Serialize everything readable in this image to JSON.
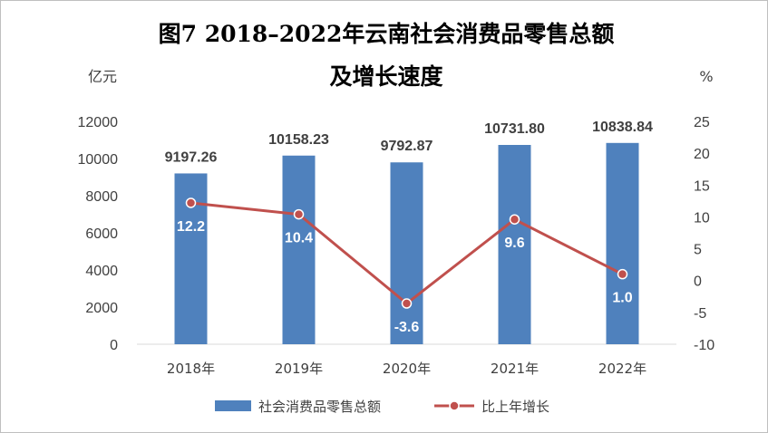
{
  "chart_data": {
    "type": "bar+line",
    "title_line1": "图7  2018–2022年云南社会消费品零售总额",
    "title_line2": "及增长速度",
    "left_unit": "亿元",
    "right_unit": "%",
    "categories": [
      "2018年",
      "2019年",
      "2020年",
      "2021年",
      "2022年"
    ],
    "y_left": {
      "min": 0,
      "max": 12000,
      "ticks": [
        "12000",
        "10000",
        "8000",
        "6000",
        "4000",
        "2000",
        "0"
      ]
    },
    "y_right": {
      "min": -10,
      "max": 25,
      "ticks": [
        "25",
        "20",
        "15",
        "10",
        "5",
        "0",
        "-5",
        "-10"
      ]
    },
    "series": [
      {
        "name": "社会消费品零售总额",
        "type": "bar",
        "axis": "left",
        "color": "#4f81bd",
        "values": [
          9197.26,
          10158.23,
          9792.87,
          10731.8,
          10838.84
        ],
        "labels": [
          "9197.26",
          "10158.23",
          "9792.87",
          "10731.80",
          "10838.84"
        ]
      },
      {
        "name": "比上年增长",
        "type": "line",
        "axis": "right",
        "color": "#c0504d",
        "values": [
          12.2,
          10.4,
          -3.6,
          9.6,
          1.0
        ],
        "labels": [
          "12.2",
          "10.4",
          "-3.6",
          "9.6",
          "1.0"
        ]
      }
    ],
    "grid": false,
    "legend_position": "bottom"
  }
}
